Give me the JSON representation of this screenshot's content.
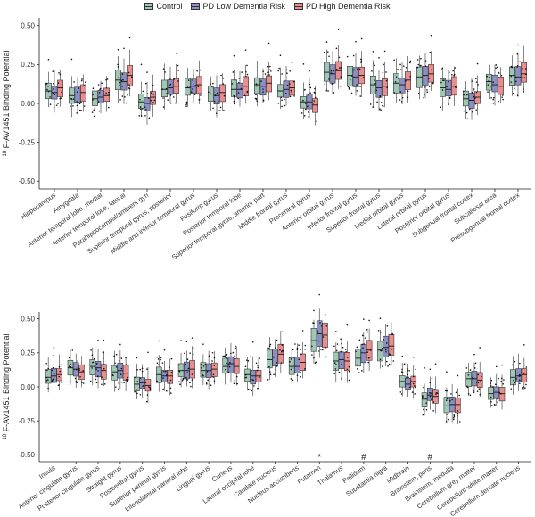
{
  "legend": {
    "items": [
      {
        "label": "Control",
        "color": "#9fc7b6"
      },
      {
        "label": "PD Low Dementia Risk",
        "color": "#8b8fc3"
      },
      {
        "label": "PD High Dementia Risk",
        "color": "#e98e8e"
      }
    ]
  },
  "chart_data": [
    {
      "type": "boxplot",
      "ylabel_sup": "18",
      "ylabel": "F-AV1451 Binding Potential",
      "ylim": [
        -0.55,
        0.55
      ],
      "yticks": [
        "0.50",
        "0.25",
        "0.00",
        "-0.25",
        "-0.50"
      ],
      "ytick_values": [
        0.5,
        0.25,
        0.0,
        -0.25,
        -0.5
      ],
      "grid": false,
      "legend": "top",
      "series": [
        "Control",
        "PD Low Dementia Risk",
        "PD High Dementia Risk"
      ],
      "categories": [
        "Hippocampus",
        "Amygdala",
        "Anterior temporal lobe, medial",
        "Anterior temporal lobe, lateral",
        "Parahippocampal/ambient gyri",
        "Superior temporal gyrus, posterior",
        "Middle and inferior temporal gyrus",
        "Fusiform gyrus",
        "Posterior temporal lobe",
        "Superior temporal gyrus, anterior part",
        "Middle frontal gyrus",
        "Precentral gyrus",
        "Anterior orbital gyrus",
        "Inferior frontal gyrus",
        "Superior frontal gyrus",
        "Medial orbital gyrus",
        "Lateral orbital gyrus",
        "Posterior orbital gyrus",
        "Subgenual frontal cortex",
        "Subcallosal area",
        "Presubgenual frontal cortex"
      ],
      "medians": [
        [
          0.08,
          0.07,
          0.1
        ],
        [
          0.05,
          0.06,
          0.07
        ],
        [
          0.03,
          0.04,
          0.05
        ],
        [
          0.15,
          0.14,
          0.18
        ],
        [
          0.01,
          0.0,
          0.04
        ],
        [
          0.09,
          0.1,
          0.11
        ],
        [
          0.1,
          0.11,
          0.12
        ],
        [
          0.06,
          0.05,
          0.07
        ],
        [
          0.09,
          0.09,
          0.11
        ],
        [
          0.12,
          0.11,
          0.13
        ],
        [
          0.08,
          0.09,
          0.1
        ],
        [
          0.01,
          0.01,
          -0.01
        ],
        [
          0.2,
          0.19,
          0.21
        ],
        [
          0.18,
          0.17,
          0.18
        ],
        [
          0.12,
          0.1,
          0.11
        ],
        [
          0.13,
          0.12,
          0.15
        ],
        [
          0.17,
          0.18,
          0.19
        ],
        [
          0.1,
          0.09,
          0.11
        ],
        [
          0.03,
          0.02,
          0.04
        ],
        [
          0.14,
          0.12,
          0.11
        ],
        [
          0.18,
          0.17,
          0.19
        ]
      ],
      "annotations": []
    },
    {
      "type": "boxplot",
      "ylabel_sup": "18",
      "ylabel": "F-AV1451 Binding Potential",
      "ylim": [
        -0.55,
        0.55
      ],
      "yticks": [
        "0.50",
        "0.25",
        "0.00",
        "-0.25",
        "-0.50"
      ],
      "ytick_values": [
        0.5,
        0.25,
        0.0,
        -0.25,
        -0.5
      ],
      "grid": false,
      "series": [
        "Control",
        "PD Low Dementia Risk",
        "PD High Dementia Risk"
      ],
      "categories": [
        "Insula",
        "Anterior cingulate gyrus",
        "Posterior cingulate gyrus",
        "Straight gyrus",
        "Postcentral gyrus",
        "Superior parietal gyrus",
        "Inferiolateral parietal lobe",
        "Lingual gyrus",
        "Cuneus",
        "Lateral occipital lobe",
        "Caudate nucleus",
        "Nucleus accumbens",
        "Putamen",
        "Thalamus",
        "Pallidum",
        "Substantia nigra",
        "Midbrain",
        "Brainstem, pons",
        "Brainstem, medulla",
        "Cerebellum grey matter",
        "Cerebellum white matter",
        "Cerebellum dentate nucleus"
      ],
      "medians": [
        [
          0.07,
          0.08,
          0.09
        ],
        [
          0.14,
          0.13,
          0.11
        ],
        [
          0.15,
          0.14,
          0.12
        ],
        [
          0.11,
          0.12,
          0.1
        ],
        [
          0.02,
          0.03,
          0.01
        ],
        [
          0.09,
          0.08,
          0.08
        ],
        [
          0.12,
          0.12,
          0.13
        ],
        [
          0.12,
          0.12,
          0.13
        ],
        [
          0.15,
          0.17,
          0.15
        ],
        [
          0.09,
          0.08,
          0.08
        ],
        [
          0.2,
          0.22,
          0.24
        ],
        [
          0.15,
          0.15,
          0.18
        ],
        [
          0.34,
          0.39,
          0.38
        ],
        [
          0.19,
          0.2,
          0.19
        ],
        [
          0.21,
          0.25,
          0.27
        ],
        [
          0.27,
          0.29,
          0.3
        ],
        [
          0.04,
          0.02,
          0.04
        ],
        [
          -0.09,
          -0.06,
          -0.07
        ],
        [
          -0.14,
          -0.13,
          -0.13
        ],
        [
          0.06,
          0.06,
          0.05
        ],
        [
          -0.05,
          -0.04,
          -0.05
        ],
        [
          0.07,
          0.08,
          0.09
        ]
      ],
      "annotations": [
        {
          "category": "Putamen",
          "text": "*"
        },
        {
          "category": "Pallidum",
          "text": "#"
        },
        {
          "category": "Brainstem, pons",
          "text": "#"
        }
      ]
    }
  ]
}
